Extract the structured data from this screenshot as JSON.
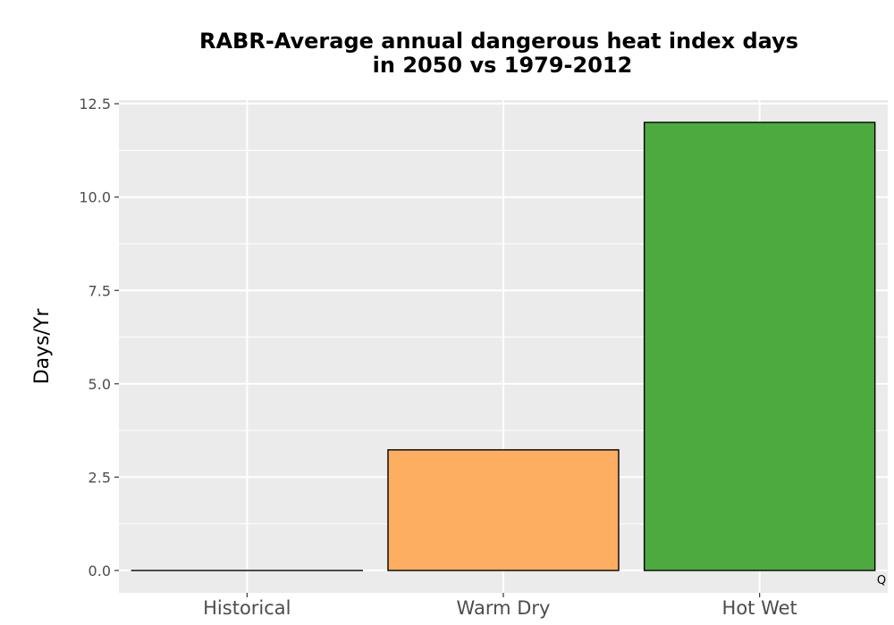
{
  "chart_data": {
    "type": "bar",
    "title": "RABR-Average annual dangerous heat index days",
    "subtitle": "in 2050 vs 1979-2012",
    "xlabel": "",
    "ylabel": "Days/Yr",
    "categories": [
      "Historical",
      "Warm Dry",
      "Hot Wet"
    ],
    "values": [
      0.0,
      3.23,
      12.0
    ],
    "colors": [
      "#ffffff",
      "#fdae61",
      "#4daa3f"
    ],
    "ylim": [
      -0.6,
      12.6
    ],
    "yticks": [
      0.0,
      2.5,
      5.0,
      7.5,
      10.0,
      12.5
    ],
    "ytick_labels": [
      "0.0",
      "2.5",
      "5.0",
      "7.5",
      "10.0",
      "12.5"
    ],
    "grid": true,
    "panel_background": "#ebebeb",
    "corner_note": "Q"
  }
}
